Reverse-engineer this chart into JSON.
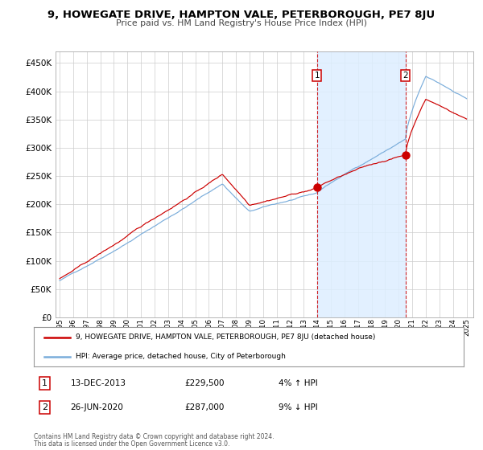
{
  "title_line1": "9, HOWEGATE DRIVE, HAMPTON VALE, PETERBOROUGH, PE7 8JU",
  "title_line2": "Price paid vs. HM Land Registry's House Price Index (HPI)",
  "ylim": [
    0,
    470000
  ],
  "yticks": [
    0,
    50000,
    100000,
    150000,
    200000,
    250000,
    300000,
    350000,
    400000,
    450000
  ],
  "ylabels": [
    "£0",
    "£50K",
    "£100K",
    "£150K",
    "£200K",
    "£250K",
    "£300K",
    "£350K",
    "£400K",
    "£450K"
  ],
  "year_start": 1995,
  "year_end": 2025,
  "legend_line1": "9, HOWEGATE DRIVE, HAMPTON VALE, PETERBOROUGH, PE7 8JU (detached house)",
  "legend_line2": "HPI: Average price, detached house, City of Peterborough",
  "annotation1_label": "1",
  "annotation1_date": "13-DEC-2013",
  "annotation1_price": "£229,500",
  "annotation1_hpi": "4% ↑ HPI",
  "annotation2_label": "2",
  "annotation2_date": "26-JUN-2020",
  "annotation2_price": "£287,000",
  "annotation2_hpi": "9% ↓ HPI",
  "footnote1": "Contains HM Land Registry data © Crown copyright and database right 2024.",
  "footnote2": "This data is licensed under the Open Government Licence v3.0.",
  "red_color": "#cc0000",
  "blue_color": "#7aaddb",
  "shade_color": "#ddeeff",
  "grid_color": "#cccccc",
  "bg_color": "#ffffff"
}
